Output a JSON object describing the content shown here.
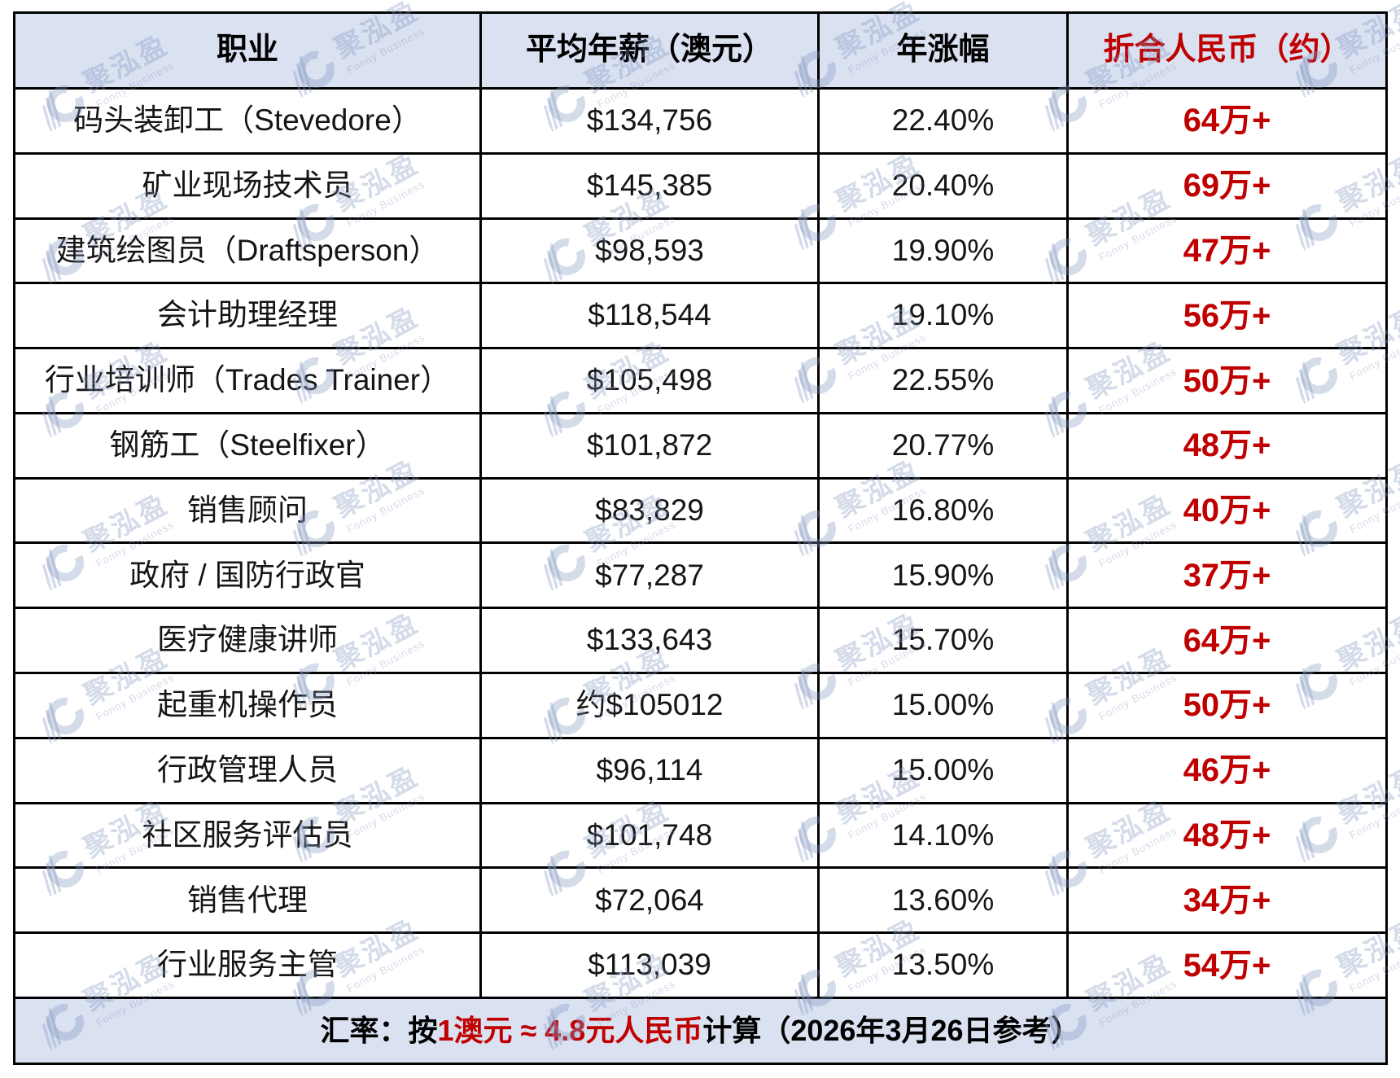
{
  "table": {
    "headers": [
      "职业",
      "平均年薪（澳元）",
      "年涨幅",
      "折合人民币（约）"
    ],
    "rows": [
      {
        "job": "码头装卸工（Stevedore）",
        "salary": "$134,756",
        "growth": "22.40%",
        "rmb": "64万+"
      },
      {
        "job": "矿业现场技术员",
        "salary": "$145,385",
        "growth": "20.40%",
        "rmb": "69万+"
      },
      {
        "job": "建筑绘图员（Draftsperson）",
        "salary": "$98,593",
        "growth": "19.90%",
        "rmb": "47万+"
      },
      {
        "job": "会计助理经理",
        "salary": "$118,544",
        "growth": "19.10%",
        "rmb": "56万+"
      },
      {
        "job": "行业培训师（Trades Trainer）",
        "salary": "$105,498",
        "growth": "22.55%",
        "rmb": "50万+"
      },
      {
        "job": "钢筋工（Steelfixer）",
        "salary": "$101,872",
        "growth": "20.77%",
        "rmb": "48万+"
      },
      {
        "job": "销售顾问",
        "salary": "$83,829",
        "growth": "16.80%",
        "rmb": "40万+"
      },
      {
        "job": "政府 / 国防行政官",
        "salary": "$77,287",
        "growth": "15.90%",
        "rmb": "37万+"
      },
      {
        "job": "医疗健康讲师",
        "salary": "$133,643",
        "growth": "15.70%",
        "rmb": "64万+"
      },
      {
        "job": "起重机操作员",
        "salary": "约$105012",
        "growth": "15.00%",
        "rmb": "50万+"
      },
      {
        "job": "行政管理人员",
        "salary": "$96,114",
        "growth": "15.00%",
        "rmb": "46万+"
      },
      {
        "job": "社区服务评估员",
        "salary": "$101,748",
        "growth": "14.10%",
        "rmb": "48万+"
      },
      {
        "job": "销售代理",
        "salary": "$72,064",
        "growth": "13.60%",
        "rmb": "34万+"
      },
      {
        "job": "行业服务主管",
        "salary": "$113,039",
        "growth": "13.50%",
        "rmb": "54万+"
      }
    ],
    "footer": {
      "prefix": "汇率：按",
      "highlight": "1澳元 ≈ 4.8元人民币",
      "suffix": "计算（2026年3月26日参考）"
    }
  },
  "watermark": {
    "brand": "聚泓盈",
    "tagline": "Fonny Business"
  },
  "colors": {
    "accent_red": "#c00000",
    "header_bg": "#dae1f1",
    "border": "#000000",
    "watermark": "rgba(128,150,190,0.34)"
  }
}
